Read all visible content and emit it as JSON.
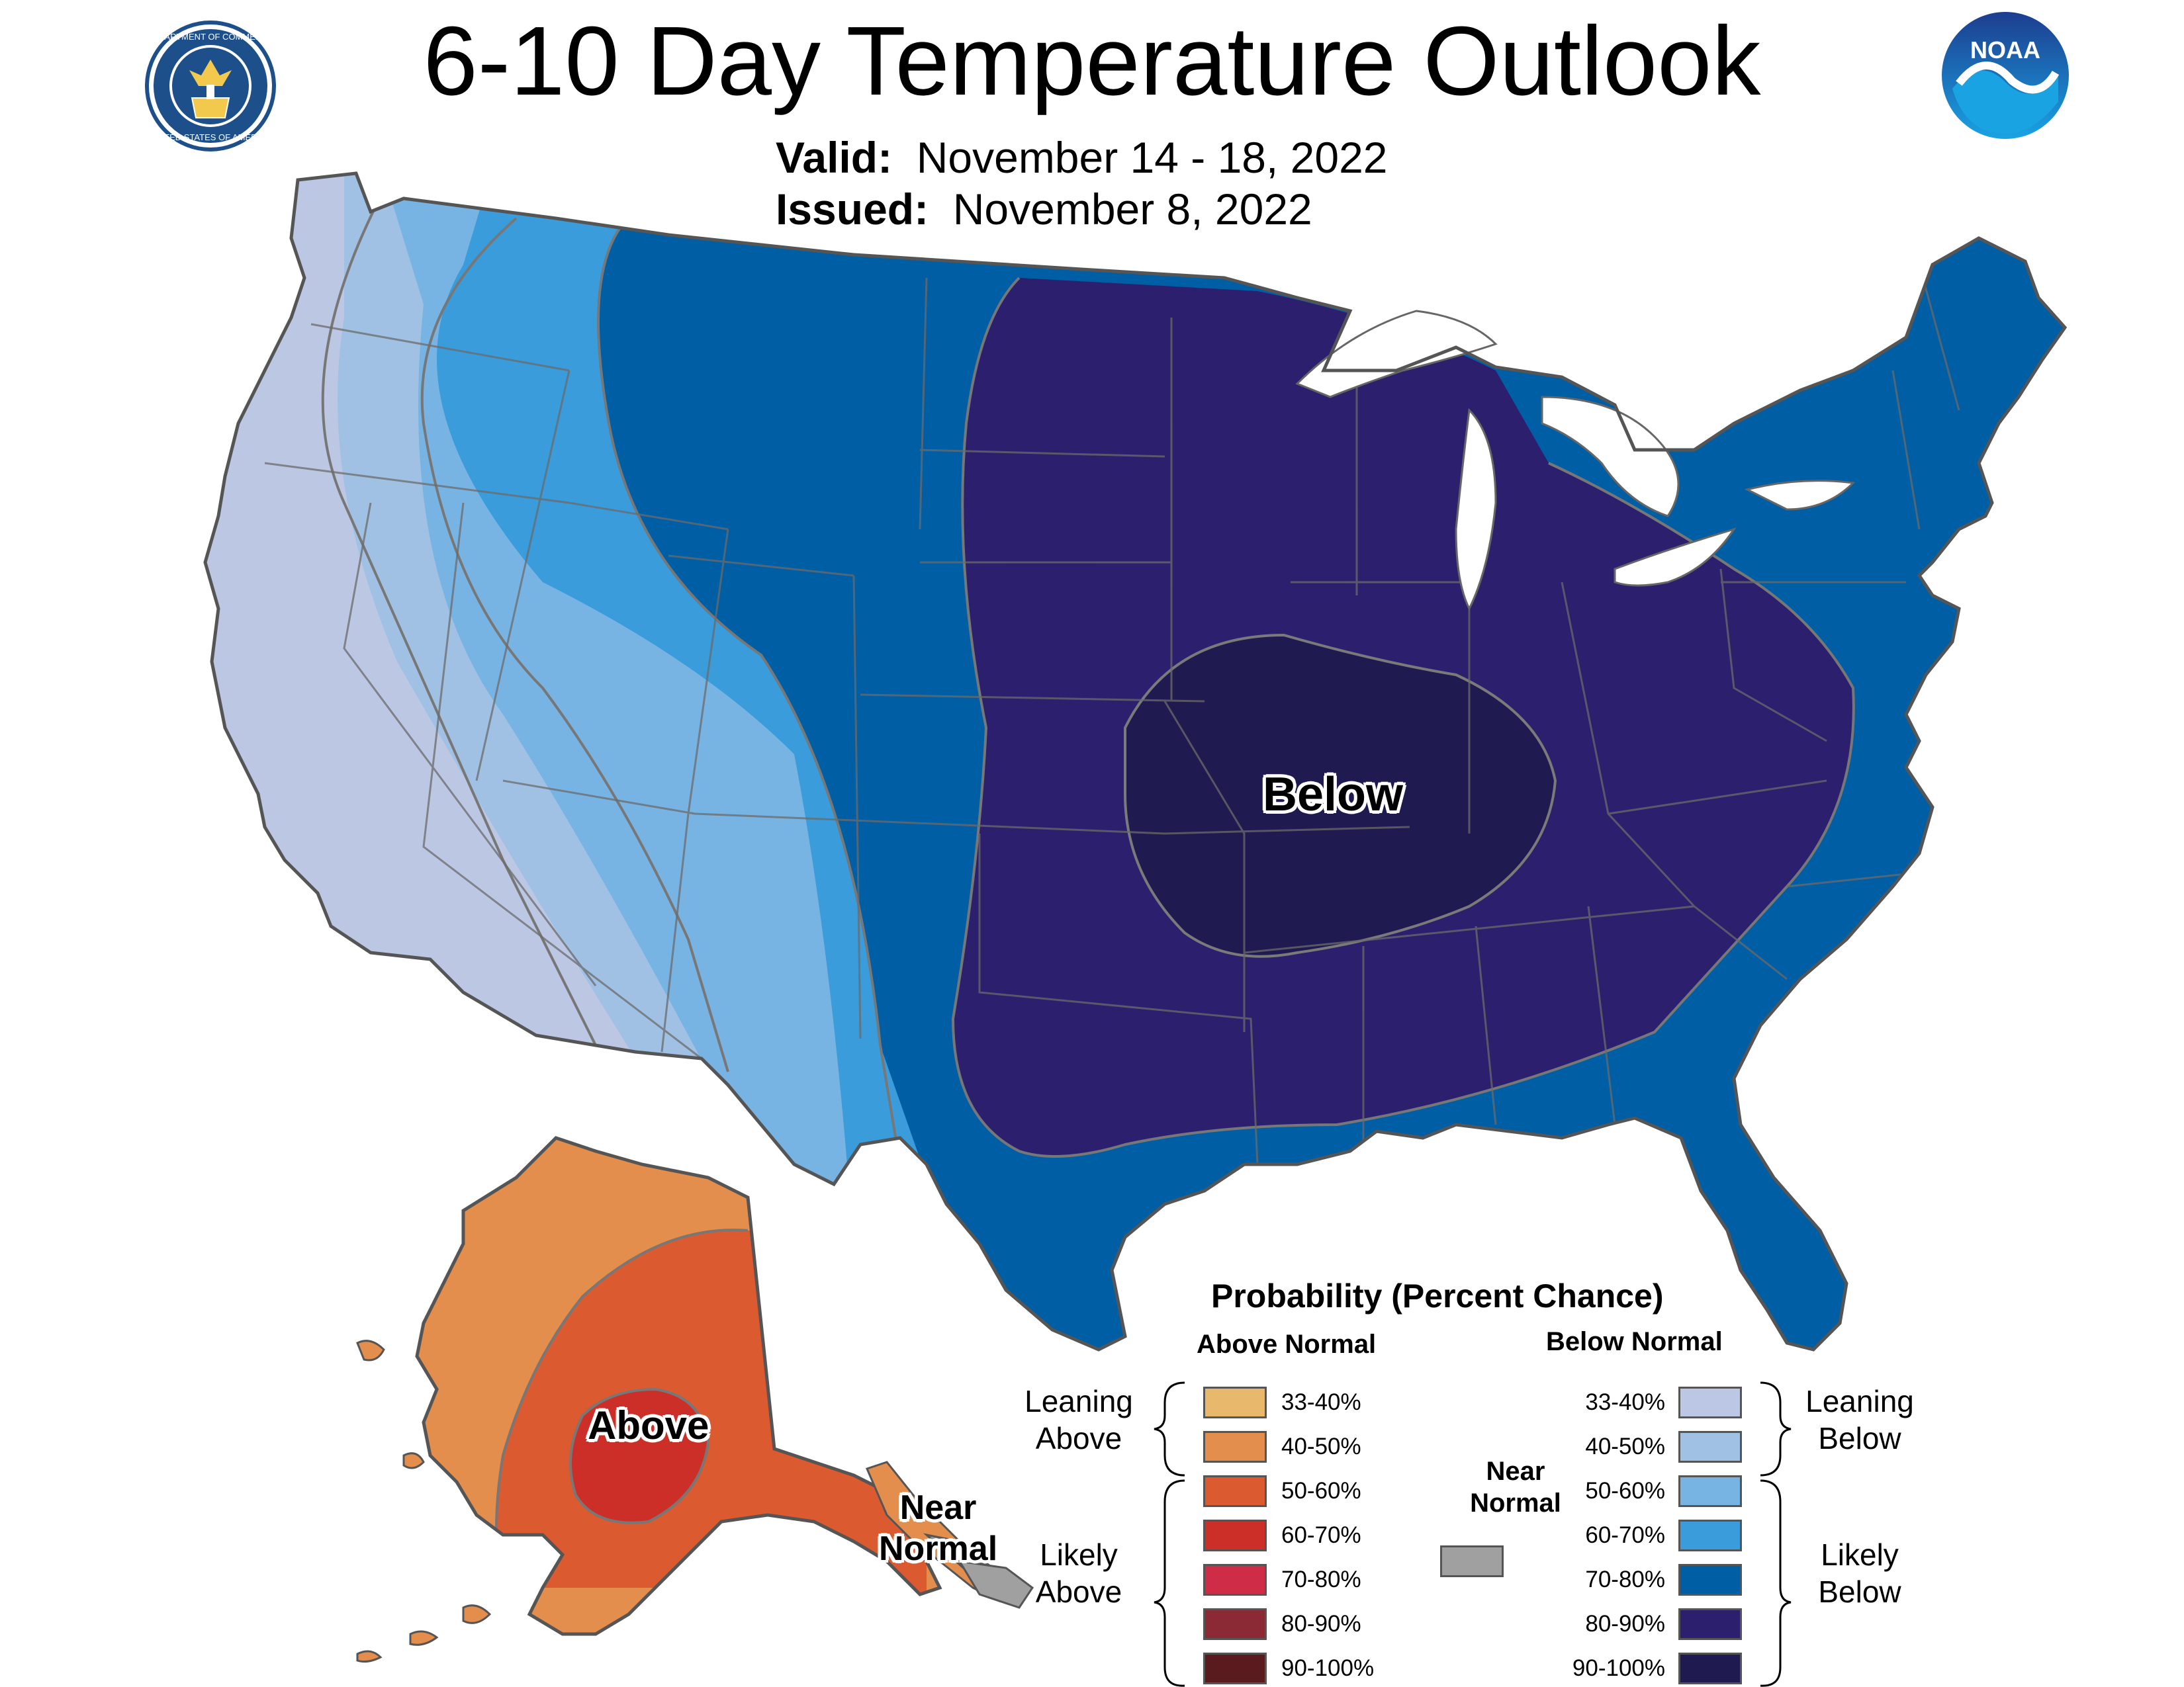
{
  "header": {
    "title": "6-10 Day Temperature Outlook",
    "valid_label": "Valid:",
    "valid_value": "November 14 - 18, 2022",
    "issued_label": "Issued:",
    "issued_value": "November 8, 2022"
  },
  "logos": {
    "commerce_text": "DEPARTMENT OF COMMERCE · UNITED STATES OF AMERICA",
    "noaa_text": "NOAA"
  },
  "map": {
    "below_label": "Below",
    "above_label": "Above",
    "near_normal_line1": "Near",
    "near_normal_line2": "Normal"
  },
  "legend": {
    "title": "Probability (Percent Chance)",
    "above_heading": "Above Normal",
    "below_heading": "Below Normal",
    "leaning_above": [
      "Leaning",
      "Above"
    ],
    "likely_above": [
      "Likely",
      "Above"
    ],
    "leaning_below": [
      "Leaning",
      "Below"
    ],
    "likely_below": [
      "Likely",
      "Below"
    ],
    "near_normal": [
      "Near",
      "Normal"
    ],
    "near_normal_color": "#a0a0a0",
    "above": [
      {
        "label": "33-40%",
        "color": "#e8b86c"
      },
      {
        "label": "40-50%",
        "color": "#e38e4c"
      },
      {
        "label": "50-60%",
        "color": "#dc5a2f"
      },
      {
        "label": "60-70%",
        "color": "#cc2f28"
      },
      {
        "label": "70-80%",
        "color": "#cf2c48"
      },
      {
        "label": "80-90%",
        "color": "#8b2a34"
      },
      {
        "label": "90-100%",
        "color": "#5a1b1e"
      }
    ],
    "below": [
      {
        "label": "33-40%",
        "color": "#bcc7e4"
      },
      {
        "label": "40-50%",
        "color": "#a0c1e3"
      },
      {
        "label": "50-60%",
        "color": "#78b4e3"
      },
      {
        "label": "60-70%",
        "color": "#3a9cdb"
      },
      {
        "label": "70-80%",
        "color": "#005ea4"
      },
      {
        "label": "80-90%",
        "color": "#2c1f6e"
      },
      {
        "label": "90-100%",
        "color": "#1f1a4f"
      }
    ]
  },
  "colors": {
    "below_33_40": "#bcc7e4",
    "below_40_50": "#a0c1e3",
    "below_50_60": "#78b4e3",
    "below_60_70": "#3a9cdb",
    "below_70_80": "#005ea4",
    "below_80_90": "#2c1f6e",
    "below_90_100": "#1f1a4f",
    "above_40_50": "#e38e4c",
    "above_50_60": "#dc5a2f",
    "above_60_70": "#cc2f28"
  }
}
